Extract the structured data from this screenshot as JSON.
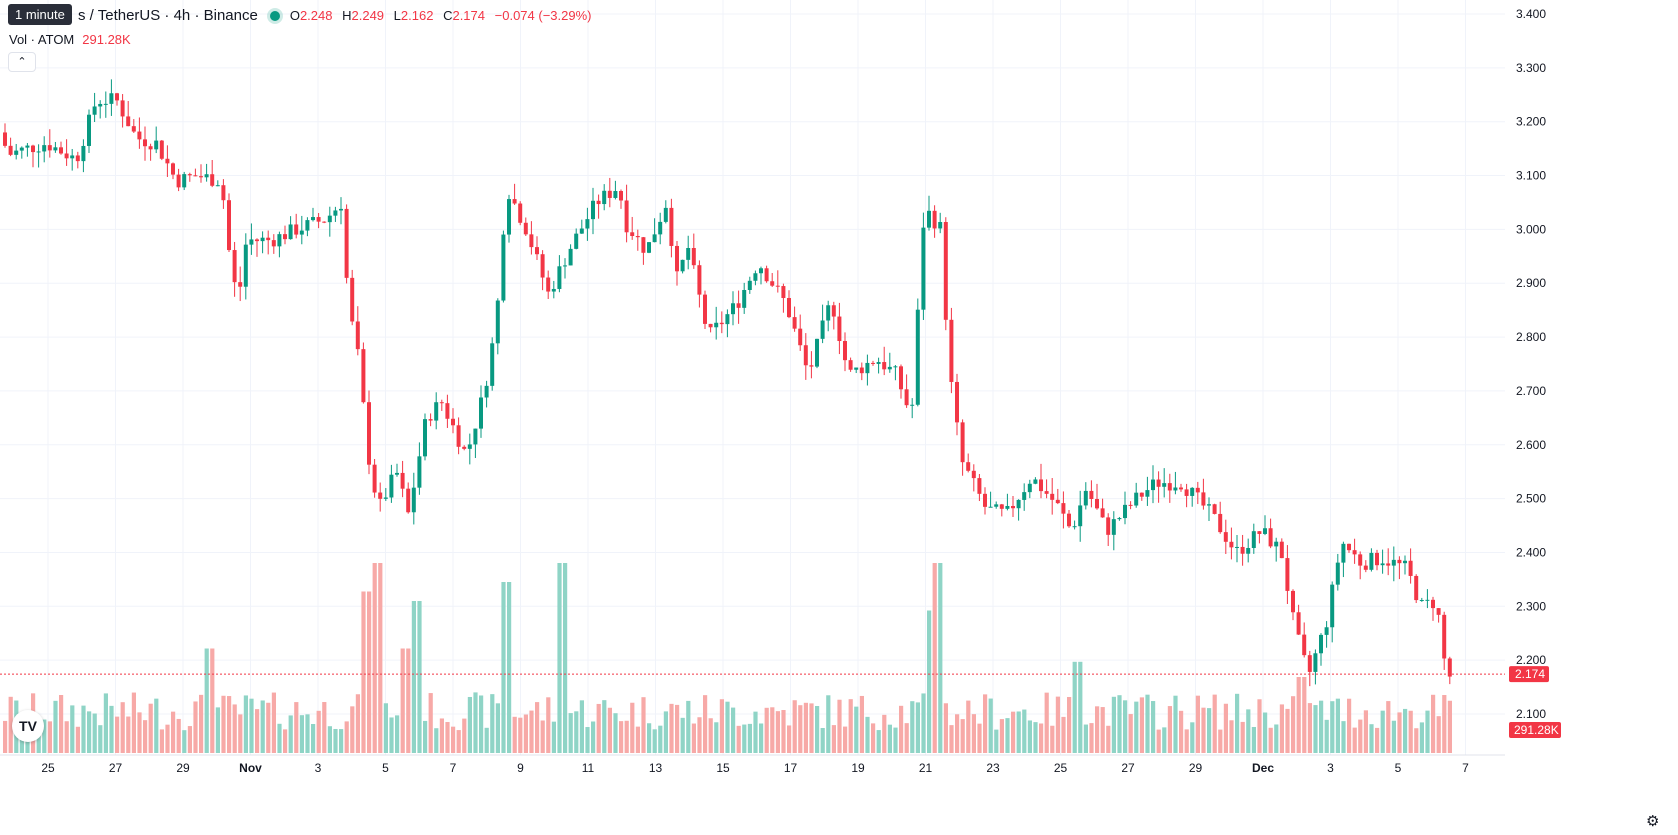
{
  "tooltip": "1 minute",
  "header": {
    "symbol_text": "s / TetherUS · 4h · Binance",
    "ohlc": {
      "o_label": "O",
      "o_value": "2.248",
      "h_label": "H",
      "h_value": "2.249",
      "l_label": "L",
      "l_value": "2.162",
      "c_label": "C",
      "c_value": "2.174",
      "change": "−0.074 (−3.29%)"
    }
  },
  "volume_legend": {
    "label": "Vol · ATOM",
    "value": "291.28K"
  },
  "collapse_icon": "chevron-up-icon",
  "logo_text": "TV",
  "settings_icon": "gear-icon",
  "colors": {
    "up": "#089981",
    "down": "#f23645",
    "up_volume": "#8fd4c6",
    "down_volume": "#f7a9a7"
  },
  "chart_data": {
    "type": "candlestick",
    "timeframe": "4h",
    "price_axis": {
      "ticks": [
        "3.400",
        "3.300",
        "3.200",
        "3.100",
        "3.000",
        "2.900",
        "2.800",
        "2.700",
        "2.600",
        "2.500",
        "2.400",
        "2.300",
        "2.200",
        "2.100"
      ],
      "range": [
        2.08,
        3.42
      ]
    },
    "time_axis": {
      "ticks": [
        "25",
        "27",
        "29",
        "Nov",
        "3",
        "5",
        "7",
        "9",
        "11",
        "13",
        "15",
        "17",
        "19",
        "21",
        "23",
        "25",
        "27",
        "29",
        "Dec",
        "3",
        "5",
        "7"
      ]
    },
    "last_price": "2.174",
    "last_volume": "291.28K",
    "grid": true,
    "anchors": [
      {
        "x": 0,
        "price": 3.18
      },
      {
        "x": 14,
        "price": 3.14
      },
      {
        "x": 30,
        "price": 3.15
      },
      {
        "x": 50,
        "price": 3.16
      },
      {
        "x": 80,
        "price": 3.13
      },
      {
        "x": 100,
        "price": 3.24
      },
      {
        "x": 120,
        "price": 3.24
      },
      {
        "x": 140,
        "price": 3.17
      },
      {
        "x": 160,
        "price": 3.16
      },
      {
        "x": 180,
        "price": 3.09
      },
      {
        "x": 200,
        "price": 3.1
      },
      {
        "x": 225,
        "price": 3.09
      },
      {
        "x": 235,
        "price": 2.92
      },
      {
        "x": 242,
        "price": 2.87
      },
      {
        "x": 250,
        "price": 2.98
      },
      {
        "x": 275,
        "price": 2.98
      },
      {
        "x": 300,
        "price": 3.0
      },
      {
        "x": 330,
        "price": 3.02
      },
      {
        "x": 345,
        "price": 3.05
      },
      {
        "x": 352,
        "price": 2.86
      },
      {
        "x": 362,
        "price": 2.76
      },
      {
        "x": 372,
        "price": 2.58
      },
      {
        "x": 382,
        "price": 2.48
      },
      {
        "x": 400,
        "price": 2.55
      },
      {
        "x": 412,
        "price": 2.47
      },
      {
        "x": 430,
        "price": 2.65
      },
      {
        "x": 445,
        "price": 2.68
      },
      {
        "x": 470,
        "price": 2.58
      },
      {
        "x": 488,
        "price": 2.7
      },
      {
        "x": 500,
        "price": 2.83
      },
      {
        "x": 510,
        "price": 3.08
      },
      {
        "x": 530,
        "price": 3.0
      },
      {
        "x": 552,
        "price": 2.88
      },
      {
        "x": 575,
        "price": 2.97
      },
      {
        "x": 600,
        "price": 3.05
      },
      {
        "x": 622,
        "price": 3.08
      },
      {
        "x": 630,
        "price": 3.01
      },
      {
        "x": 650,
        "price": 2.96
      },
      {
        "x": 670,
        "price": 3.05
      },
      {
        "x": 682,
        "price": 2.89
      },
      {
        "x": 690,
        "price": 2.98
      },
      {
        "x": 712,
        "price": 2.8
      },
      {
        "x": 740,
        "price": 2.86
      },
      {
        "x": 762,
        "price": 2.94
      },
      {
        "x": 790,
        "price": 2.86
      },
      {
        "x": 812,
        "price": 2.73
      },
      {
        "x": 835,
        "price": 2.87
      },
      {
        "x": 852,
        "price": 2.73
      },
      {
        "x": 880,
        "price": 2.76
      },
      {
        "x": 900,
        "price": 2.73
      },
      {
        "x": 915,
        "price": 2.65
      },
      {
        "x": 928,
        "price": 3.04
      },
      {
        "x": 945,
        "price": 3.0
      },
      {
        "x": 952,
        "price": 2.75
      },
      {
        "x": 965,
        "price": 2.57
      },
      {
        "x": 990,
        "price": 2.48
      },
      {
        "x": 1010,
        "price": 2.47
      },
      {
        "x": 1035,
        "price": 2.54
      },
      {
        "x": 1060,
        "price": 2.49
      },
      {
        "x": 1075,
        "price": 2.44
      },
      {
        "x": 1090,
        "price": 2.52
      },
      {
        "x": 1110,
        "price": 2.44
      },
      {
        "x": 1140,
        "price": 2.5
      },
      {
        "x": 1160,
        "price": 2.53
      },
      {
        "x": 1185,
        "price": 2.53
      },
      {
        "x": 1215,
        "price": 2.47
      },
      {
        "x": 1240,
        "price": 2.4
      },
      {
        "x": 1265,
        "price": 2.44
      },
      {
        "x": 1285,
        "price": 2.4
      },
      {
        "x": 1298,
        "price": 2.26
      },
      {
        "x": 1312,
        "price": 2.17
      },
      {
        "x": 1330,
        "price": 2.27
      },
      {
        "x": 1345,
        "price": 2.42
      },
      {
        "x": 1365,
        "price": 2.38
      },
      {
        "x": 1385,
        "price": 2.39
      },
      {
        "x": 1410,
        "price": 2.37
      },
      {
        "x": 1425,
        "price": 2.3
      },
      {
        "x": 1440,
        "price": 2.31
      },
      {
        "x": 1450,
        "price": 2.17
      }
    ],
    "volume_peaks": [
      {
        "x": 205,
        "value": 0.55
      },
      {
        "x": 367,
        "value": 0.85
      },
      {
        "x": 378,
        "value": 1.0
      },
      {
        "x": 405,
        "value": 0.55
      },
      {
        "x": 412,
        "value": 0.8
      },
      {
        "x": 507,
        "value": 0.9
      },
      {
        "x": 563,
        "value": 1.0
      },
      {
        "x": 928,
        "value": 0.75
      },
      {
        "x": 933,
        "value": 1.0
      },
      {
        "x": 1073,
        "value": 0.48
      },
      {
        "x": 1298,
        "value": 0.4
      }
    ]
  }
}
